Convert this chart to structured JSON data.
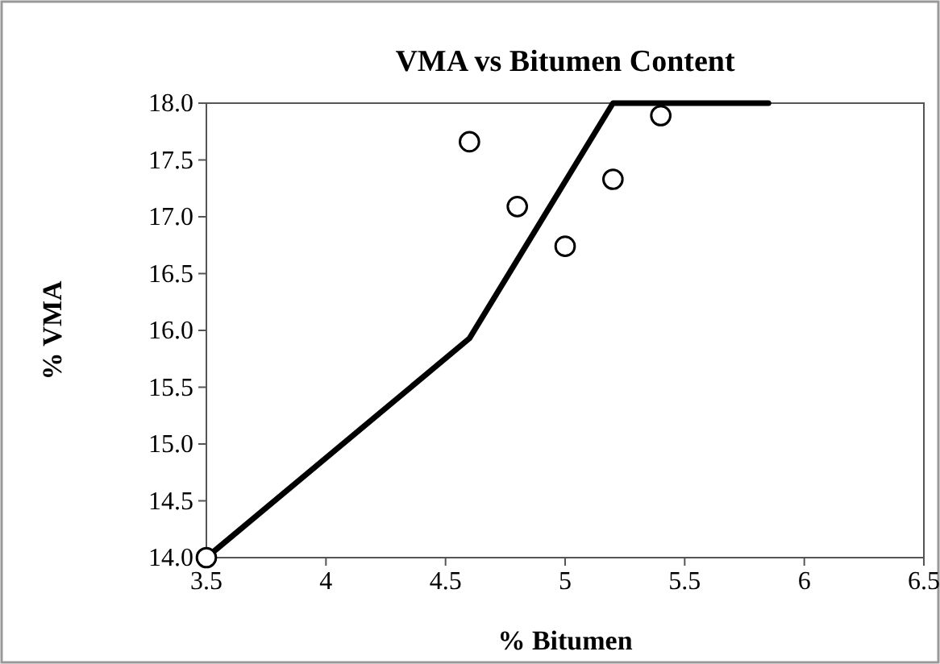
{
  "chart_data": {
    "type": "scatter",
    "title": "VMA vs Bitumen Content",
    "xlabel": "% Bitumen",
    "ylabel": "% VMA",
    "xlim": [
      3.5,
      6.5
    ],
    "xticks": [
      3.5,
      4,
      4.5,
      5,
      5.5,
      6,
      6.5
    ],
    "ylim": [
      14,
      18
    ],
    "yticks": [
      {
        "value": 14,
        "label": "14.0"
      },
      {
        "value": 14.5,
        "label": "14.5"
      },
      {
        "value": 15,
        "label": "15.0"
      },
      {
        "value": 15.5,
        "label": "15.5"
      },
      {
        "value": 16,
        "label": "16.0"
      },
      {
        "value": 16.5,
        "label": "16.5"
      },
      {
        "value": 17,
        "label": "17.0"
      },
      {
        "value": 17.5,
        "label": "17.5"
      },
      {
        "value": 18,
        "label": "18.0"
      }
    ],
    "grid": false,
    "series": [
      {
        "type": "line",
        "color": "#000000",
        "marker": "none",
        "line_style": "solid",
        "x": [
          3.5,
          4.6,
          5.2,
          5.85
        ],
        "values": [
          14,
          15.93,
          18,
          18
        ]
      },
      {
        "color": "#000000",
        "marker": "circle",
        "x": [
          3.5,
          4.6,
          4.8,
          5.0,
          5.2,
          5.4
        ],
        "values": [
          14,
          17.66,
          17.09,
          16.74,
          17.33,
          17.89
        ]
      }
    ]
  }
}
